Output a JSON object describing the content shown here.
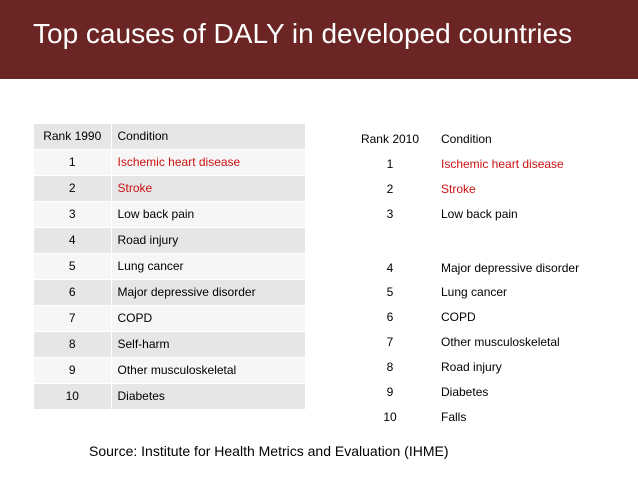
{
  "title": "Top causes of DALY in developed countries",
  "table_1990": {
    "headers": [
      "Rank 1990",
      "Condition"
    ],
    "rows": [
      {
        "rank": "1",
        "condition": "Ischemic heart disease",
        "highlight": true
      },
      {
        "rank": "2",
        "condition": "Stroke",
        "highlight": true
      },
      {
        "rank": "3",
        "condition": "Low back pain",
        "highlight": false
      },
      {
        "rank": "4",
        "condition": "Road injury",
        "highlight": false
      },
      {
        "rank": "5",
        "condition": "Lung cancer",
        "highlight": false
      },
      {
        "rank": "6",
        "condition": "Major depressive disorder",
        "highlight": false
      },
      {
        "rank": "7",
        "condition": "COPD",
        "highlight": false
      },
      {
        "rank": "8",
        "condition": "Self-harm",
        "highlight": false
      },
      {
        "rank": "9",
        "condition": "Other musculoskeletal",
        "highlight": false
      },
      {
        "rank": "10",
        "condition": "Diabetes",
        "highlight": false
      }
    ]
  },
  "table_2010": {
    "headers": [
      "Rank 2010",
      "Condition"
    ],
    "rows": [
      {
        "rank": "1",
        "condition": "Ischemic heart disease",
        "highlight": true
      },
      {
        "rank": "2",
        "condition": "Stroke",
        "highlight": true
      },
      {
        "rank": "3",
        "condition": "Low back pain",
        "highlight": false
      },
      {
        "rank": "4",
        "condition": "Major depressive disorder",
        "highlight": false
      },
      {
        "rank": "5",
        "condition": "Lung cancer",
        "highlight": false
      },
      {
        "rank": "6",
        "condition": "COPD",
        "highlight": false
      },
      {
        "rank": "7",
        "condition": "Other musculoskeletal",
        "highlight": false
      },
      {
        "rank": "8",
        "condition": "Road injury",
        "highlight": false
      },
      {
        "rank": "9",
        "condition": "Diabetes",
        "highlight": false
      },
      {
        "rank": "10",
        "condition": "Falls",
        "highlight": false
      }
    ]
  },
  "source": "Source: Institute for Health Metrics and Evaluation (IHME)",
  "colors": {
    "title_bar": "#6b2525",
    "highlight_text": "#cc1111"
  }
}
